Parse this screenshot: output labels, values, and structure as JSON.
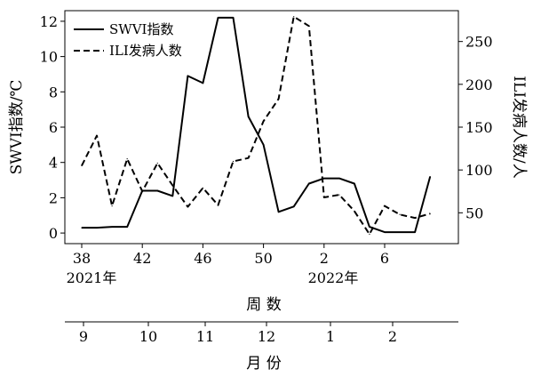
{
  "chart_data": {
    "type": "line",
    "x": {
      "label": "周 数",
      "ticks": [
        "38",
        "42",
        "46",
        "50",
        "2",
        "6"
      ],
      "year_labels": [
        "2021年",
        "2022年"
      ],
      "points": [
        "38",
        "39",
        "40",
        "41",
        "42",
        "43",
        "44",
        "45",
        "46",
        "47",
        "48",
        "49",
        "50",
        "51",
        "52",
        "1",
        "2",
        "3",
        "4",
        "5",
        "6",
        "7",
        "8",
        "9"
      ]
    },
    "y_left": {
      "label": "SWVI指数/℃",
      "ticks": [
        "0",
        "2",
        "4",
        "6",
        "8",
        "10",
        "12"
      ],
      "range": [
        -0.6,
        12.6
      ]
    },
    "y_right": {
      "label": "ILI发病人数/人",
      "ticks": [
        "50",
        "100",
        "150",
        "200",
        "250"
      ],
      "range": [
        14,
        286
      ]
    },
    "month_axis": {
      "label": "月 份",
      "ticks": [
        "9",
        "10",
        "11",
        "12",
        "1",
        "2"
      ]
    },
    "legend": {
      "placement": "top-left"
    },
    "series": [
      {
        "name": "SWVI指数",
        "style": "solid",
        "axis": "left",
        "color": "#000000",
        "values": [
          0.3,
          0.3,
          0.35,
          0.35,
          2.4,
          2.4,
          2.1,
          8.9,
          8.5,
          12.2,
          12.2,
          6.6,
          5.0,
          1.2,
          1.5,
          2.8,
          3.1,
          3.1,
          2.8,
          0.35,
          0.05,
          0.05,
          0.05,
          3.2
        ]
      },
      {
        "name": "ILI发病人数",
        "style": "dashed",
        "axis": "right",
        "color": "#000000",
        "values": [
          105,
          140,
          58,
          113,
          75,
          108,
          82,
          57,
          79,
          59,
          110,
          114,
          157,
          183,
          279,
          268,
          68,
          71,
          52,
          25,
          58,
          48,
          44,
          49
        ]
      }
    ]
  }
}
